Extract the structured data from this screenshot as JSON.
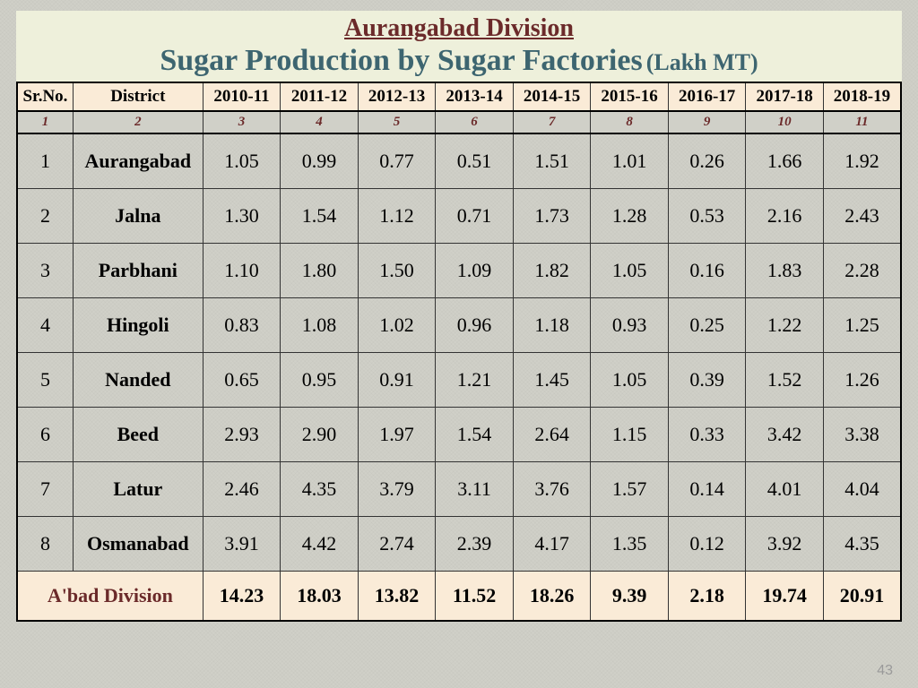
{
  "title": {
    "division": "Aurangabad Division",
    "main": "Sugar Production by Sugar Factories",
    "unit": "(Lakh MT)"
  },
  "colors": {
    "header_bg": "#faebd7",
    "index_bg": "#d0d0c8",
    "title_bg": "#eef0db",
    "accent_text": "#6b2a2a",
    "main_title_text": "#3d6570",
    "border": "#333333"
  },
  "columns": {
    "srno": "Sr.No.",
    "district": "District",
    "years": [
      "2010-11",
      "2011-12",
      "2012-13",
      "2013-14",
      "2014-15",
      "2015-16",
      "2016-17",
      "2017-18",
      "2018-19"
    ]
  },
  "index_row": [
    "1",
    "2",
    "3",
    "4",
    "5",
    "6",
    "7",
    "8",
    "9",
    "10",
    "11"
  ],
  "rows": [
    {
      "sr": "1",
      "district": "Aurangabad",
      "v": [
        "1.05",
        "0.99",
        "0.77",
        "0.51",
        "1.51",
        "1.01",
        "0.26",
        "1.66",
        "1.92"
      ]
    },
    {
      "sr": "2",
      "district": "Jalna",
      "v": [
        "1.30",
        "1.54",
        "1.12",
        "0.71",
        "1.73",
        "1.28",
        "0.53",
        "2.16",
        "2.43"
      ]
    },
    {
      "sr": "3",
      "district": "Parbhani",
      "v": [
        "1.10",
        "1.80",
        "1.50",
        "1.09",
        "1.82",
        "1.05",
        "0.16",
        "1.83",
        "2.28"
      ]
    },
    {
      "sr": "4",
      "district": "Hingoli",
      "v": [
        "0.83",
        "1.08",
        "1.02",
        "0.96",
        "1.18",
        "0.93",
        "0.25",
        "1.22",
        "1.25"
      ]
    },
    {
      "sr": "5",
      "district": "Nanded",
      "v": [
        "0.65",
        "0.95",
        "0.91",
        "1.21",
        "1.45",
        "1.05",
        "0.39",
        "1.52",
        "1.26"
      ]
    },
    {
      "sr": "6",
      "district": "Beed",
      "v": [
        "2.93",
        "2.90",
        "1.97",
        "1.54",
        "2.64",
        "1.15",
        "0.33",
        "3.42",
        "3.38"
      ]
    },
    {
      "sr": "7",
      "district": "Latur",
      "v": [
        "2.46",
        "4.35",
        "3.79",
        "3.11",
        "3.76",
        "1.57",
        "0.14",
        "4.01",
        "4.04"
      ]
    },
    {
      "sr": "8",
      "district": "Osmanabad",
      "v": [
        "3.91",
        "4.42",
        "2.74",
        "2.39",
        "4.17",
        "1.35",
        "0.12",
        "3.92",
        "4.35"
      ]
    }
  ],
  "total": {
    "label": "A'bad Division",
    "v": [
      "14.23",
      "18.03",
      "13.82",
      "11.52",
      "18.26",
      "9.39",
      "2.18",
      "19.74",
      "20.91"
    ]
  },
  "page_number": "43"
}
